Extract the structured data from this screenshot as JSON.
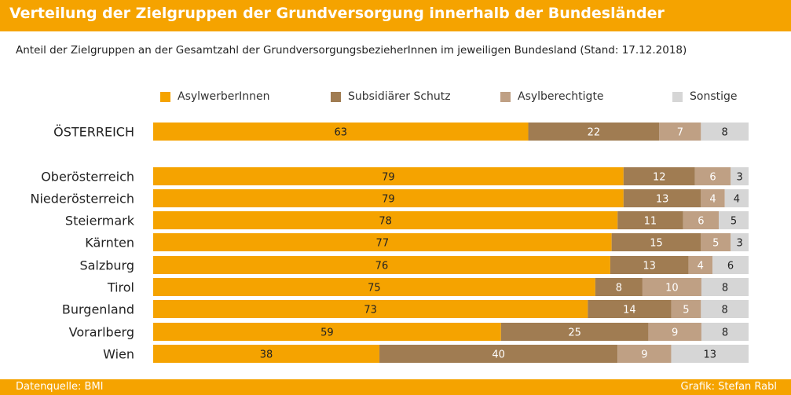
{
  "colors": {
    "header_bg": "#F5A300",
    "asylwerber": "#F5A300",
    "subsidiaer": "#A07C52",
    "asylberechtigte": "#BFA084",
    "sonstige": "#D6D6D6",
    "label_dark": "#222222",
    "label_light": "#ffffff"
  },
  "header": {
    "title": "Verteilung der Zielgruppen der Grundversorgung innerhalb der Bundesländer"
  },
  "subtitle": "Anteil der Zielgruppen an der Gesamtzahl der GrundversorgungsbezieherInnen im jeweiligen Bundesland (Stand: 17.12.2018)",
  "footer": {
    "source": "Datenquelle: BMI",
    "credit": "Grafik: Stefan Rabl"
  },
  "chart_data": {
    "type": "bar",
    "orientation": "horizontal",
    "stacked": true,
    "title": "Verteilung der Zielgruppen der Grundversorgung innerhalb der Bundesländer",
    "xlim": [
      0,
      100
    ],
    "unit": "%",
    "legend_position": "top",
    "categories": [
      "ÖSTERREICH",
      "Oberösterreich",
      "Niederösterreich",
      "Steiermark",
      "Kärnten",
      "Salzburg",
      "Tirol",
      "Burgenland",
      "Vorarlberg",
      "Wien"
    ],
    "series": [
      {
        "name": "AsylwerberInnen",
        "values": [
          63,
          79,
          79,
          78,
          77,
          76,
          75,
          73,
          59,
          38
        ]
      },
      {
        "name": "Subsidiärer Schutz",
        "values": [
          22,
          12,
          13,
          11,
          15,
          13,
          8,
          14,
          25,
          40
        ]
      },
      {
        "name": "Asylberechtigte",
        "values": [
          7,
          6,
          4,
          6,
          5,
          4,
          10,
          5,
          9,
          9
        ]
      },
      {
        "name": "Sonstige",
        "values": [
          8,
          3,
          4,
          5,
          3,
          6,
          8,
          8,
          8,
          13
        ]
      }
    ]
  }
}
